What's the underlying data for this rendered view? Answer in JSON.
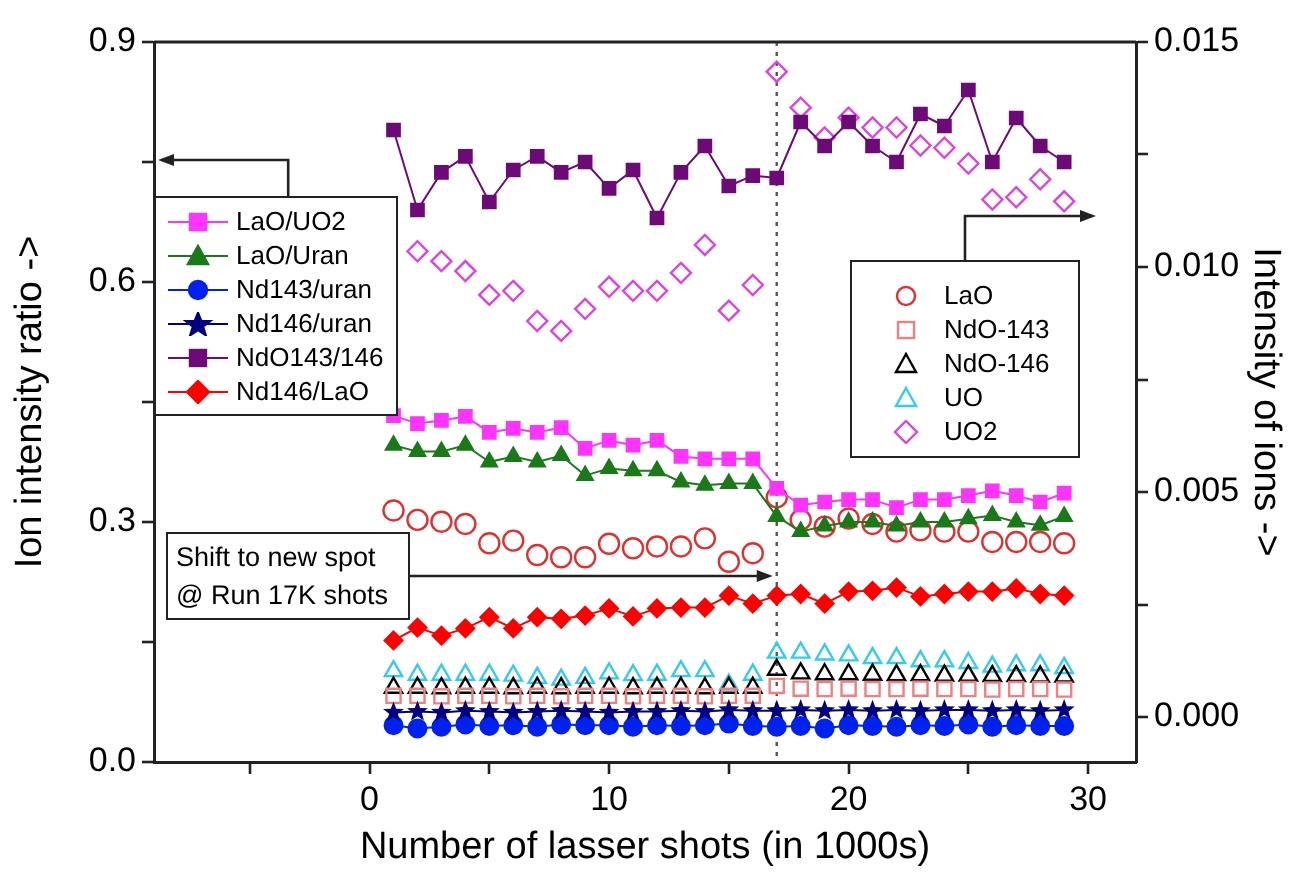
{
  "chart_data": {
    "type": "line",
    "xlabel": "Number of lasser shots (in 1000s)",
    "ylabel": "Ion intensity ratio ->",
    "y2label": "Intensity of ions ->",
    "x": [
      1,
      2,
      3,
      4,
      5,
      6,
      7,
      8,
      9,
      10,
      11,
      12,
      13,
      14,
      15,
      16,
      17,
      18,
      19,
      20,
      21,
      22,
      23,
      24,
      25,
      26,
      27,
      28,
      29
    ],
    "xlim": [
      -9,
      32
    ],
    "xticks": [
      {
        "value": -5,
        "label": null
      },
      0,
      {
        "value": 5,
        "label": null
      },
      10,
      {
        "value": 15,
        "label": null
      },
      20,
      {
        "value": 25,
        "label": null
      },
      30
    ],
    "ylim": [
      0,
      0.9
    ],
    "yticks": [
      {
        "value": 0,
        "label": "0.0"
      },
      {
        "value": 0.15,
        "label": null
      },
      0.3,
      {
        "value": 0.45,
        "label": null
      },
      0.6,
      {
        "value": 0.75,
        "label": null
      },
      0.9
    ],
    "y2lim": [
      -0.001,
      0.015
    ],
    "y2ticks": [
      {
        "value": 0.0,
        "label": "0.000"
      },
      {
        "value": 0.0025,
        "label": null
      },
      {
        "value": 0.005,
        "label": "0.005"
      },
      {
        "value": 0.0075,
        "label": null
      },
      {
        "value": 0.01,
        "label": "0.010"
      },
      {
        "value": 0.0125,
        "label": null
      },
      {
        "value": 0.015,
        "label": "0.015"
      }
    ],
    "grid": false,
    "legend": "left",
    "ref_lines": [
      {
        "axis": "x",
        "value": 17,
        "color": "#555555",
        "line_style": "dotted"
      }
    ],
    "annotations": [
      "Shift to new spot @ Run 17K shots"
    ],
    "series": [
      {
        "name": "LaO/UO2",
        "marker": "square",
        "color": "#ff33ff",
        "values": [
          0.433,
          0.423,
          0.427,
          0.432,
          0.412,
          0.417,
          0.412,
          0.418,
          0.392,
          0.402,
          0.396,
          0.402,
          0.382,
          0.379,
          0.379,
          0.379,
          0.342,
          0.321,
          0.325,
          0.328,
          0.328,
          0.318,
          0.328,
          0.328,
          0.333,
          0.339,
          0.333,
          0.325,
          0.336
        ]
      },
      {
        "name": "LaO/Uran",
        "marker": "triangle",
        "color": "#1a7a1a",
        "values": [
          0.396,
          0.388,
          0.388,
          0.396,
          0.375,
          0.382,
          0.375,
          0.383,
          0.358,
          0.367,
          0.364,
          0.364,
          0.35,
          0.346,
          0.348,
          0.348,
          0.307,
          0.288,
          0.295,
          0.3,
          0.3,
          0.295,
          0.3,
          0.3,
          0.304,
          0.308,
          0.3,
          0.296,
          0.307
        ]
      },
      {
        "name": "Nd143/uran",
        "marker": "circle",
        "color": "#0022ee",
        "values": [
          0.046,
          0.042,
          0.044,
          0.047,
          0.045,
          0.046,
          0.044,
          0.047,
          0.046,
          0.046,
          0.044,
          0.046,
          0.045,
          0.046,
          0.048,
          0.045,
          0.044,
          0.045,
          0.042,
          0.046,
          0.045,
          0.044,
          0.046,
          0.045,
          0.047,
          0.044,
          0.046,
          0.045,
          0.045
        ]
      },
      {
        "name": "Nd146/uran",
        "marker": "star",
        "color": "#000080",
        "values": [
          0.062,
          0.063,
          0.062,
          0.064,
          0.063,
          0.062,
          0.063,
          0.064,
          0.063,
          0.062,
          0.063,
          0.063,
          0.064,
          0.063,
          0.065,
          0.064,
          0.064,
          0.065,
          0.064,
          0.065,
          0.064,
          0.065,
          0.064,
          0.065,
          0.065,
          0.064,
          0.065,
          0.064,
          0.065
        ]
      },
      {
        "name": "NdO143/146",
        "marker": "square",
        "color": "#6e0a78",
        "values": [
          0.79,
          0.69,
          0.737,
          0.757,
          0.7,
          0.74,
          0.757,
          0.737,
          0.75,
          0.717,
          0.74,
          0.68,
          0.737,
          0.77,
          0.72,
          0.733,
          0.73,
          0.8,
          0.77,
          0.8,
          0.77,
          0.75,
          0.81,
          0.795,
          0.84,
          0.75,
          0.805,
          0.77,
          0.75
        ]
      },
      {
        "name": "Nd146/LaO",
        "marker": "diamond",
        "color": "#ff0000",
        "values": [
          0.152,
          0.168,
          0.158,
          0.167,
          0.181,
          0.167,
          0.181,
          0.179,
          0.183,
          0.192,
          0.182,
          0.192,
          0.193,
          0.193,
          0.208,
          0.198,
          0.208,
          0.21,
          0.198,
          0.213,
          0.214,
          0.218,
          0.207,
          0.21,
          0.213,
          0.213,
          0.217,
          0.21,
          0.208
        ]
      },
      {
        "name": "LaO",
        "type": "scatter",
        "axis": "y2",
        "marker": "circle",
        "color": "#e03030",
        "values": [
          0.00459,
          0.00438,
          0.00434,
          0.00429,
          0.00386,
          0.00392,
          0.0036,
          0.00355,
          0.00355,
          0.00385,
          0.00375,
          0.00379,
          0.00379,
          0.00397,
          0.00345,
          0.00364,
          0.00488,
          0.00438,
          0.00423,
          0.00441,
          0.00429,
          0.00412,
          0.00415,
          0.00412,
          0.00412,
          0.00389,
          0.00389,
          0.00389,
          0.00386
        ]
      },
      {
        "name": "NdO-143",
        "type": "scatter",
        "axis": "y2",
        "marker": "square",
        "color": "#f08080",
        "values": [
          0.00047,
          0.00047,
          0.00046,
          0.00047,
          0.00047,
          0.00046,
          0.00047,
          0.00046,
          0.00047,
          0.00047,
          0.00046,
          0.00047,
          0.00047,
          0.00046,
          0.00047,
          0.00047,
          0.00069,
          0.00063,
          0.00062,
          0.00063,
          0.00062,
          0.00062,
          0.00063,
          0.00062,
          0.00062,
          0.00061,
          0.00062,
          0.00062,
          0.00061
        ]
      },
      {
        "name": "NdO-146",
        "type": "scatter",
        "axis": "y2",
        "marker": "triangle",
        "color": "#000000",
        "values": [
          0.00065,
          0.00065,
          0.00064,
          0.00065,
          0.00065,
          0.00064,
          0.00065,
          0.00064,
          0.00065,
          0.00065,
          0.00064,
          0.00065,
          0.00065,
          0.00064,
          0.00065,
          0.00065,
          0.00105,
          0.00097,
          0.00095,
          0.00095,
          0.00094,
          0.00093,
          0.00093,
          0.00092,
          0.00092,
          0.00091,
          0.00091,
          0.0009,
          0.0009
        ]
      },
      {
        "name": "UO",
        "type": "scatter",
        "axis": "y2",
        "marker": "triangle",
        "color": "#33ccee",
        "values": [
          0.00102,
          0.00094,
          0.00094,
          0.00094,
          0.00094,
          0.00092,
          0.00087,
          0.00083,
          0.00087,
          0.00097,
          0.00093,
          0.00094,
          0.00102,
          0.00102,
          0.00072,
          0.00094,
          0.00143,
          0.00143,
          0.00139,
          0.00137,
          0.00131,
          0.00131,
          0.00124,
          0.00124,
          0.0012,
          0.00112,
          0.00115,
          0.00115,
          0.00109
        ]
      },
      {
        "name": "UO2",
        "type": "scatter",
        "axis": "y2",
        "marker": "diamond",
        "color": "#dd44dd",
        "values": [
          null,
          0.01035,
          0.01013,
          0.00991,
          0.00938,
          0.00947,
          0.0088,
          0.00858,
          0.00907,
          0.00956,
          0.00947,
          0.00947,
          0.00987,
          0.01049,
          0.00903,
          0.0096,
          0.01434,
          0.01354,
          0.01288,
          0.01332,
          0.0131,
          0.0131,
          0.0127,
          0.01265,
          0.0123,
          0.0115,
          0.01155,
          0.01195,
          0.01146
        ]
      }
    ]
  }
}
